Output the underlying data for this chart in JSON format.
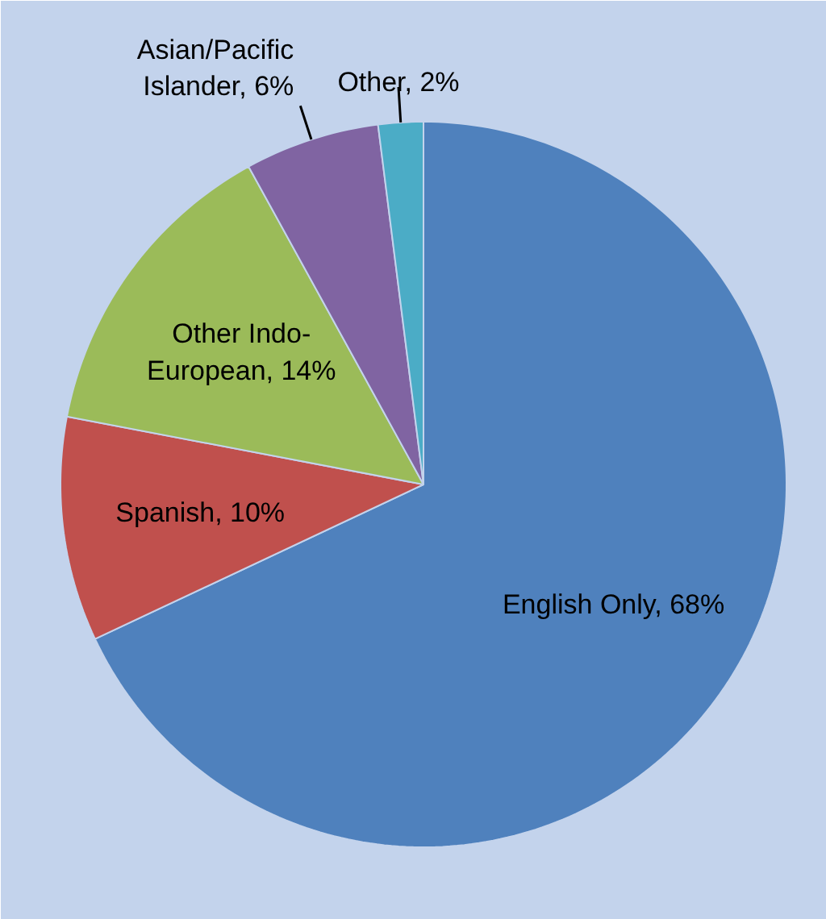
{
  "chart_data": {
    "type": "pie",
    "categories": [
      "English Only",
      "Spanish",
      "Other Indo-European",
      "Asian/Pacific Islander",
      "Other"
    ],
    "values": [
      68,
      10,
      14,
      6,
      2
    ],
    "value_labels": [
      "68%",
      "10%",
      "14%",
      "6%",
      "2%"
    ],
    "colors": [
      "#4f81bd",
      "#c0504d",
      "#9bbb59",
      "#8064a2",
      "#4bacc6"
    ]
  }
}
